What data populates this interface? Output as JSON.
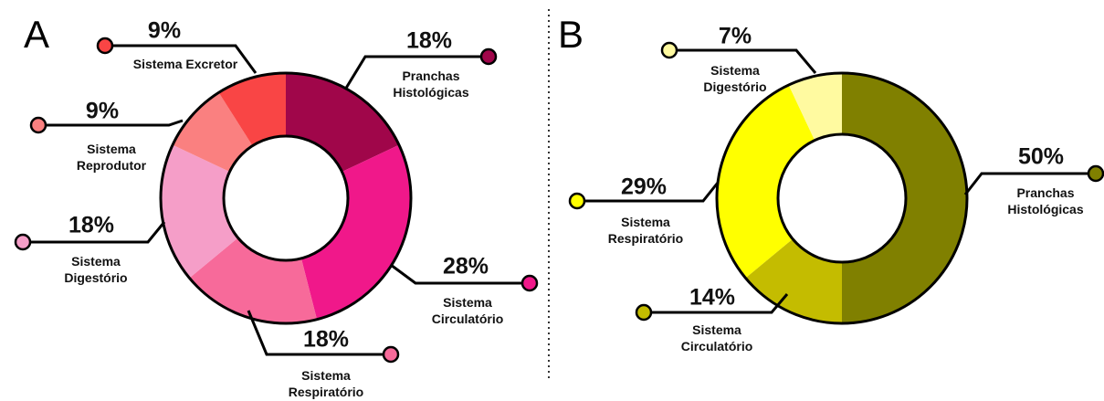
{
  "chart_data": [
    {
      "type": "donut",
      "label": "A",
      "categories": [
        "Pranchas\nHistológicas",
        "Sistema\nCirculatório",
        "Sistema\nRespiratório",
        "Sistema\nDigestório",
        "Sistema\nReprodutor",
        "Sistema Excretor"
      ],
      "values": [
        18,
        28,
        18,
        18,
        9,
        9
      ],
      "value_labels": [
        "18%",
        "28%",
        "18%",
        "18%",
        "9%",
        "9%"
      ],
      "colors": [
        "#a0064a",
        "#f0188a",
        "#f76a9a",
        "#f59ec8",
        "#fa8080",
        "#f94545"
      ]
    },
    {
      "type": "donut",
      "label": "B",
      "categories": [
        "Pranchas\nHistológicas",
        "Sistema\nCirculatório",
        "Sistema\nRespiratório",
        "Sistema\nDigestório"
      ],
      "values": [
        50,
        14,
        29,
        7
      ],
      "value_labels": [
        "50%",
        "14%",
        "29%",
        "7%"
      ],
      "colors": [
        "#808000",
        "#c4bc00",
        "#ffff00",
        "#fffaa0"
      ]
    }
  ]
}
